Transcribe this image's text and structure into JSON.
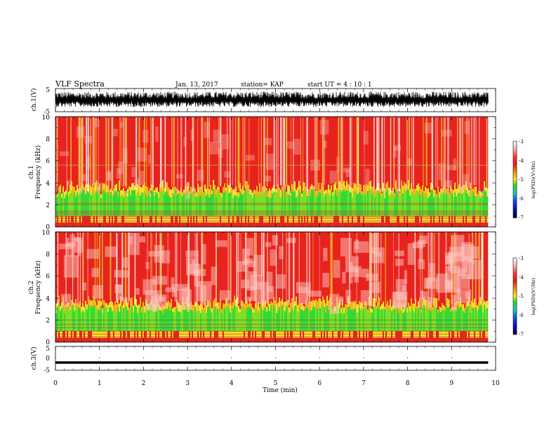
{
  "header": {
    "title": "VLF Spectra",
    "date": "Jan. 13, 2017",
    "station": "station= KAP",
    "start": "start  UT =   4 : 10 : 1"
  },
  "chart_data": [
    {
      "type": "line",
      "panel": "ch1-waveform",
      "ylabel": "ch.1(V)",
      "ylim": [
        -5,
        5
      ],
      "yticks": [
        "5",
        "-5"
      ],
      "xlim": [
        0,
        10
      ],
      "description_values": {
        "typical_range": [
          -2,
          3
        ]
      }
    },
    {
      "type": "heatmap",
      "panel": "ch1-spectrogram",
      "ylabel": "ch.1\nFrequency (kHz)",
      "ylim": [
        0,
        10
      ],
      "yticks": [
        "0",
        "2",
        "4",
        "6",
        "8",
        "10"
      ],
      "xlim": [
        0,
        10
      ],
      "colorbar": {
        "label": "log(PSD)(V²/Hz)",
        "range": [
          -7,
          -3
        ],
        "ticks": [
          "-3",
          "-4",
          "-5",
          "-6",
          "-7"
        ]
      }
    },
    {
      "type": "heatmap",
      "panel": "ch2-spectrogram",
      "ylabel": "ch.2\nFrequency (kHz)",
      "ylim": [
        0,
        10
      ],
      "yticks": [
        "0",
        "2",
        "4",
        "6",
        "8",
        "10"
      ],
      "xlim": [
        0,
        10
      ],
      "colorbar": {
        "label": "log(PSD)(V²/Hz)",
        "range": [
          -7,
          -3
        ],
        "ticks": [
          "-3",
          "-4",
          "-5",
          "-6",
          "-7"
        ]
      }
    },
    {
      "type": "line",
      "panel": "ch3-waveform",
      "ylabel": "ch.3(V)",
      "ylim": [
        -5,
        5
      ],
      "yticks": [
        "5",
        "0",
        "-5"
      ],
      "xlim": [
        0,
        10
      ],
      "series": [
        {
          "values_constant": -2
        }
      ]
    }
  ],
  "xaxis": {
    "label": "Time (min)",
    "ticks": [
      "0",
      "1",
      "2",
      "3",
      "4",
      "5",
      "6",
      "7",
      "8",
      "9",
      "10"
    ],
    "data_end": 9.83
  },
  "labels": {
    "ch1_wave": "ch.1(V)",
    "ch1_spec_a": "ch.1",
    "ch1_spec_b": "Frequency (kHz)",
    "ch2_spec_a": "ch.2",
    "ch2_spec_b": "Frequency (kHz)",
    "ch3_wave": "ch.3(V)",
    "cb_label_1": "log(PSD)(V²/Hz)",
    "cb_label_2": "log(PSD)(V²/Hz)"
  },
  "colors": {
    "spectrum_high": "#e3201b",
    "spectrum_mid": "#f7e629",
    "spectrum_low": "#2bd92b",
    "spectrum_cyan": "#22c8d8",
    "background": "#ffffff",
    "axes": "#000000"
  }
}
